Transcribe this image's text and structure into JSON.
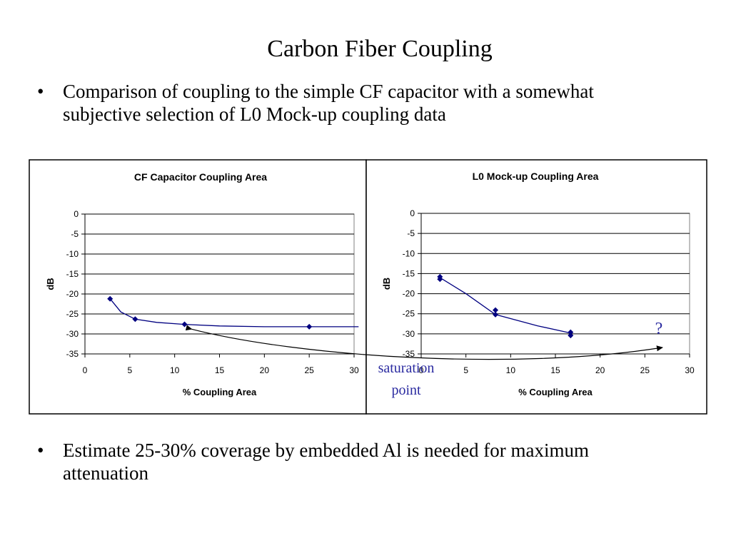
{
  "slide": {
    "title": "Carbon Fiber Coupling",
    "bullets": [
      "Comparison of coupling to the simple CF capacitor with a somewhat subjective selection of L0 Mock-up coupling data",
      "Estimate 25-30% coverage by embedded Al is needed for maximum attenuation"
    ],
    "bullet_glyph": "•"
  },
  "annotations": {
    "saturation_line1": "saturation",
    "saturation_line2": "point",
    "question": "?",
    "color": "#2a2aa0"
  },
  "chart_data": [
    {
      "type": "scatter",
      "title": "CF Capacitor Coupling Area",
      "xlabel": "% Coupling Area",
      "ylabel": "dB",
      "xlim": [
        0,
        30
      ],
      "ylim": [
        -35,
        0
      ],
      "xticks": [
        0,
        5,
        10,
        15,
        20,
        25,
        30
      ],
      "yticks": [
        0,
        -5,
        -10,
        -15,
        -20,
        -25,
        -30,
        -35
      ],
      "grid": "horizontal",
      "legend": "none",
      "series": [
        {
          "points": [
            [
              2.8,
              -21.2
            ],
            [
              5.6,
              -26.3
            ],
            [
              11.1,
              -27.6
            ],
            [
              25.0,
              -28.2
            ]
          ],
          "curve": [
            [
              2.8,
              -21.2
            ],
            [
              4.0,
              -24.5
            ],
            [
              5.6,
              -26.3
            ],
            [
              8.0,
              -27.1
            ],
            [
              11.1,
              -27.6
            ],
            [
              15.0,
              -28.0
            ],
            [
              20.0,
              -28.2
            ],
            [
              25.0,
              -28.2
            ],
            [
              30.5,
              -28.2
            ]
          ],
          "color": "#000080"
        }
      ]
    },
    {
      "type": "scatter",
      "title": "L0 Mock-up Coupling Area",
      "xlabel": "% Coupling Area",
      "ylabel": "dB",
      "xlim": [
        0,
        30
      ],
      "ylim": [
        -35,
        0
      ],
      "xticks": [
        0,
        5,
        10,
        15,
        20,
        25,
        30
      ],
      "yticks": [
        0,
        -5,
        -10,
        -15,
        -20,
        -25,
        -30,
        -35
      ],
      "grid": "horizontal",
      "legend": "none",
      "series": [
        {
          "points": [
            [
              2.1,
              -15.8
            ],
            [
              2.1,
              -16.4
            ],
            [
              8.3,
              -24.1
            ],
            [
              8.3,
              -25.2
            ],
            [
              16.7,
              -29.6
            ],
            [
              16.7,
              -30.4
            ]
          ],
          "curve": [
            [
              2.1,
              -16.0
            ],
            [
              5.0,
              -20.0
            ],
            [
              8.3,
              -25.2
            ],
            [
              13.0,
              -28.0
            ],
            [
              16.7,
              -29.8
            ]
          ],
          "color": "#000080"
        }
      ]
    }
  ]
}
